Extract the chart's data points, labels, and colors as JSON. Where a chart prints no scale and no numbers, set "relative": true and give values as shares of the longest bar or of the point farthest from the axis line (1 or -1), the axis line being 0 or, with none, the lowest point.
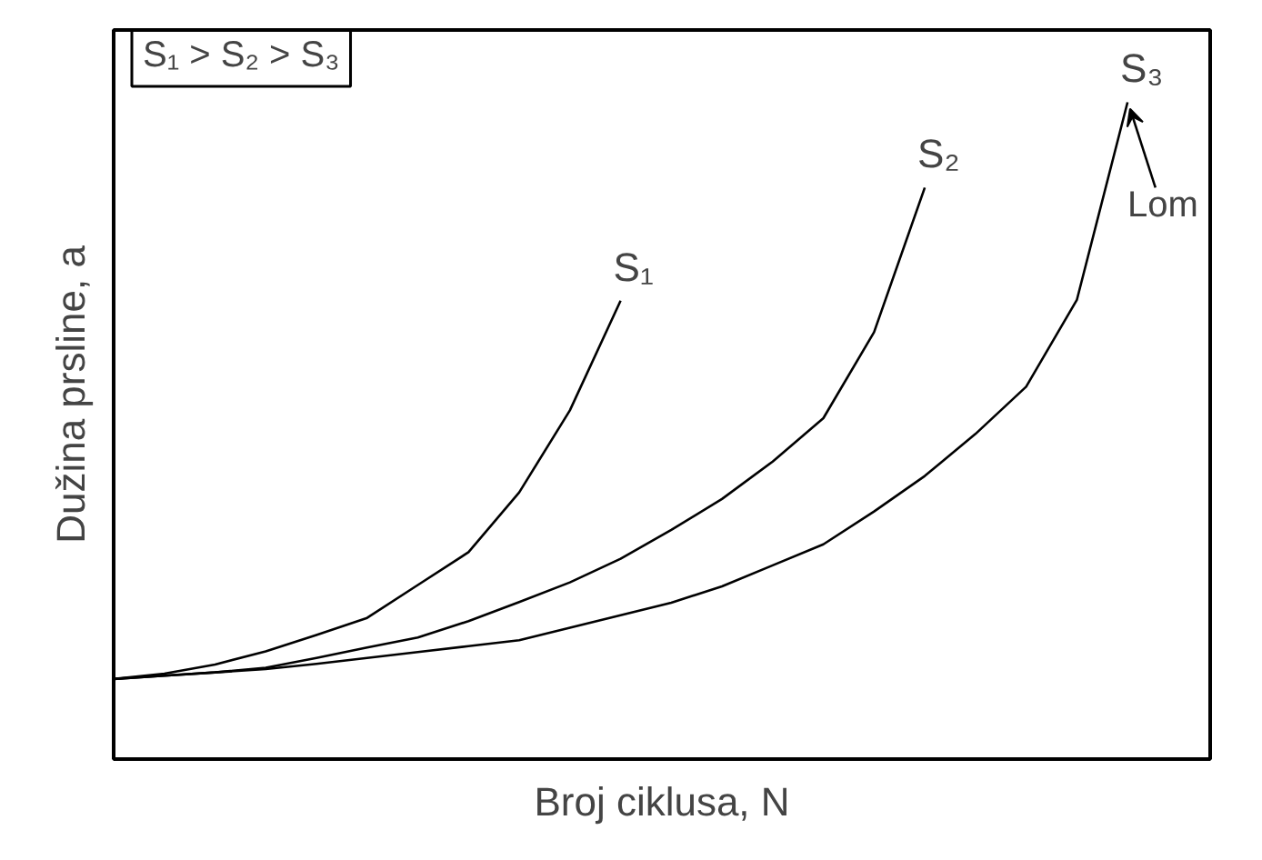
{
  "chart_data": {
    "type": "line",
    "relative": true,
    "xlabel": "Broj ciklusa, N",
    "ylabel": "Dužina prsline, a",
    "grid": false,
    "categories": [
      null,
      null,
      null,
      null,
      null,
      null,
      null,
      null,
      null,
      null,
      null,
      null,
      null,
      null,
      null,
      null,
      null,
      null,
      null,
      null,
      null,
      null
    ],
    "series": [
      {
        "name": "S₁",
        "color": "#000000",
        "values": [
          0.122,
          0.13,
          0.144,
          0.164,
          0.189,
          0.215,
          0.265,
          0.315,
          0.406,
          0.531,
          0.698,
          null,
          null,
          null,
          null,
          null,
          null,
          null,
          null,
          null,
          null,
          null
        ]
      },
      {
        "name": "S₂",
        "color": "#000000",
        "values": [
          0.122,
          0.127,
          0.132,
          0.139,
          0.154,
          0.17,
          0.185,
          0.21,
          0.239,
          0.269,
          0.305,
          0.349,
          0.396,
          0.453,
          0.519,
          0.65,
          0.87,
          null,
          null,
          null,
          null,
          null
        ]
      },
      {
        "name": "S₃",
        "color": "#000000",
        "values": [
          0.122,
          0.127,
          0.132,
          0.137,
          0.145,
          0.154,
          0.163,
          0.172,
          0.181,
          0.2,
          0.219,
          0.238,
          0.263,
          0.295,
          0.327,
          0.377,
          0.431,
          0.495,
          0.567,
          0.699,
          1.0,
          null
        ]
      }
    ],
    "annotations": [
      "S₁ > S₂ > S₃",
      "Lom"
    ]
  }
}
